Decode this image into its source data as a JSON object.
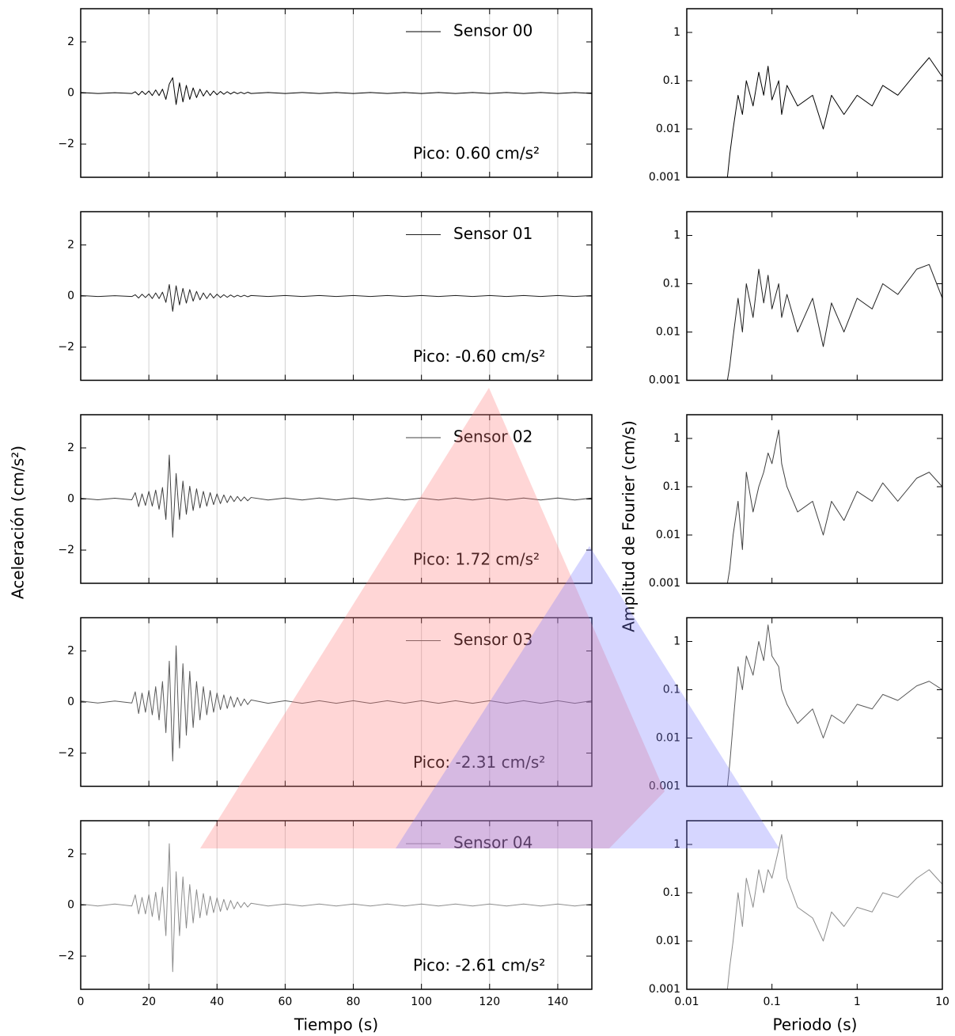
{
  "chart_data": [
    {
      "type": "line",
      "xlabel": "Tiempo (s)",
      "ylabel": "Aceleración (cm/s²)",
      "xlim": [
        0,
        150
      ],
      "xticks": [
        0,
        20,
        40,
        60,
        80,
        100,
        120,
        140
      ],
      "ylim": [
        -3.3,
        3.3
      ],
      "yticks": [
        {
          "value": -2,
          "label": "−2"
        },
        0,
        2
      ],
      "grid": true,
      "x": [
        0,
        5,
        10,
        15,
        16,
        17,
        18,
        19,
        20,
        21,
        22,
        23,
        24,
        25,
        26,
        27,
        28,
        29,
        30,
        31,
        32,
        33,
        34,
        35,
        36,
        37,
        38,
        39,
        40,
        41,
        42,
        43,
        44,
        45,
        46,
        47,
        48,
        49,
        50,
        55,
        60,
        65,
        70,
        75,
        80,
        85,
        90,
        95,
        100,
        105,
        110,
        115,
        120,
        125,
        130,
        135,
        140,
        145,
        150
      ],
      "series": [
        {
          "name": "Sensor 00",
          "color": "#000000",
          "annotation": "Pico: 0.60 cm/s²",
          "values": [
            0.02,
            -0.02,
            0.01,
            -0.02,
            0.05,
            -0.08,
            0.07,
            -0.06,
            0.08,
            -0.1,
            0.12,
            -0.1,
            0.15,
            -0.25,
            0.35,
            0.6,
            -0.45,
            0.4,
            -0.35,
            0.3,
            -0.25,
            0.2,
            -0.18,
            0.15,
            -0.12,
            0.1,
            -0.1,
            0.08,
            -0.07,
            0.06,
            -0.05,
            0.05,
            -0.04,
            0.04,
            -0.03,
            0.03,
            -0.03,
            0.03,
            -0.02,
            0.02,
            -0.02,
            0.02,
            -0.02,
            0.02,
            -0.02,
            0.02,
            -0.02,
            0.02,
            -0.02,
            0.02,
            -0.02,
            0.02,
            -0.02,
            0.02,
            -0.02,
            0.02,
            -0.02,
            0.02,
            -0.02
          ]
        },
        {
          "name": "Sensor 01",
          "color": "#202020",
          "annotation": "Pico: -0.60 cm/s²",
          "values": [
            0.02,
            -0.02,
            0.01,
            -0.02,
            0.05,
            -0.08,
            0.07,
            -0.06,
            0.08,
            -0.1,
            0.12,
            -0.1,
            0.15,
            -0.25,
            0.45,
            -0.6,
            0.4,
            -0.35,
            0.3,
            -0.28,
            0.25,
            -0.2,
            0.18,
            -0.15,
            0.12,
            -0.1,
            0.1,
            -0.08,
            0.07,
            -0.06,
            0.05,
            -0.05,
            0.04,
            -0.04,
            0.03,
            -0.03,
            0.03,
            -0.03,
            0.02,
            -0.02,
            0.02,
            -0.02,
            0.02,
            -0.02,
            0.02,
            -0.02,
            0.02,
            -0.02,
            0.02,
            -0.02,
            0.02,
            -0.02,
            0.02,
            -0.02,
            0.02,
            -0.02,
            0.02,
            -0.02,
            0.02
          ]
        },
        {
          "name": "Sensor 02",
          "color": "#404040",
          "annotation": "Pico: 1.72 cm/s²",
          "values": [
            0.03,
            -0.03,
            0.03,
            -0.03,
            0.25,
            -0.3,
            0.2,
            -0.25,
            0.3,
            -0.28,
            0.35,
            -0.4,
            0.45,
            -0.8,
            1.72,
            -1.5,
            1.0,
            -0.8,
            0.7,
            -0.6,
            0.5,
            -0.45,
            0.4,
            -0.35,
            0.3,
            -0.28,
            0.25,
            -0.22,
            0.2,
            -0.18,
            0.16,
            -0.14,
            0.12,
            -0.1,
            0.1,
            -0.08,
            0.08,
            -0.07,
            0.06,
            -0.04,
            0.04,
            -0.04,
            0.04,
            -0.04,
            0.04,
            -0.04,
            0.04,
            -0.04,
            0.04,
            -0.04,
            0.04,
            -0.04,
            0.04,
            -0.04,
            0.04,
            -0.04,
            0.04,
            -0.04,
            0.04
          ]
        },
        {
          "name": "Sensor 03",
          "color": "#5a5a5a",
          "annotation": "Pico: -2.31 cm/s²",
          "values": [
            0.04,
            -0.04,
            0.04,
            -0.04,
            0.4,
            -0.45,
            0.35,
            -0.4,
            0.45,
            -0.5,
            0.6,
            -0.7,
            0.8,
            -1.2,
            1.6,
            -2.31,
            2.2,
            -1.8,
            1.5,
            -1.3,
            1.2,
            -1.0,
            0.8,
            -0.7,
            0.6,
            -0.5,
            0.45,
            -0.4,
            0.35,
            -0.3,
            0.28,
            -0.25,
            0.22,
            -0.2,
            0.18,
            -0.15,
            0.12,
            -0.1,
            0.08,
            -0.05,
            0.05,
            -0.05,
            0.05,
            -0.05,
            0.05,
            -0.05,
            0.05,
            -0.05,
            0.05,
            -0.05,
            0.05,
            -0.05,
            0.05,
            -0.05,
            0.05,
            -0.05,
            0.05,
            -0.05,
            0.05
          ]
        },
        {
          "name": "Sensor 04",
          "color": "#8c8c8c",
          "annotation": "Pico: -2.61 cm/s²",
          "values": [
            0.04,
            -0.04,
            0.04,
            -0.04,
            0.4,
            -0.35,
            0.3,
            -0.35,
            0.4,
            -0.45,
            0.5,
            -0.6,
            0.7,
            -1.2,
            2.4,
            -2.61,
            1.3,
            -1.2,
            1.1,
            -0.9,
            0.8,
            -0.7,
            0.6,
            -0.5,
            0.45,
            -0.4,
            0.35,
            -0.3,
            0.28,
            -0.25,
            0.22,
            -0.2,
            0.18,
            -0.15,
            0.12,
            -0.1,
            0.1,
            -0.08,
            0.07,
            -0.04,
            0.04,
            -0.04,
            0.04,
            -0.04,
            0.04,
            -0.04,
            0.04,
            -0.04,
            0.04,
            -0.04,
            0.04,
            -0.04,
            0.04,
            -0.04,
            0.04,
            -0.04,
            0.04,
            -0.04,
            0.04
          ]
        }
      ]
    },
    {
      "type": "line",
      "xlabel": "Periodo (s)",
      "ylabel": "Amplitud de Fourier (cm/s)",
      "log_x": true,
      "log_y": true,
      "xlim": [
        0.01,
        10
      ],
      "xticks": [
        0.01,
        0.1,
        1,
        10
      ],
      "ylim": [
        0.001,
        3.1
      ],
      "yticks": [
        0.001,
        0.01,
        0.1,
        1
      ],
      "grid": false,
      "x": [
        0.03,
        0.032,
        0.035,
        0.04,
        0.045,
        0.05,
        0.06,
        0.07,
        0.08,
        0.09,
        0.1,
        0.12,
        0.13,
        0.15,
        0.2,
        0.3,
        0.4,
        0.5,
        0.7,
        1,
        1.5,
        2,
        3,
        5,
        7,
        10
      ],
      "series": [
        {
          "color": "#000000",
          "values": [
            0.001,
            0.003,
            0.01,
            0.05,
            0.02,
            0.1,
            0.03,
            0.15,
            0.05,
            0.2,
            0.04,
            0.1,
            0.02,
            0.08,
            0.03,
            0.05,
            0.01,
            0.05,
            0.02,
            0.05,
            0.03,
            0.08,
            0.05,
            0.15,
            0.3,
            0.12
          ]
        },
        {
          "color": "#202020",
          "values": [
            0.001,
            0.002,
            0.008,
            0.05,
            0.01,
            0.1,
            0.02,
            0.2,
            0.04,
            0.15,
            0.03,
            0.1,
            0.02,
            0.06,
            0.01,
            0.05,
            0.005,
            0.04,
            0.01,
            0.05,
            0.03,
            0.1,
            0.06,
            0.2,
            0.25,
            0.05
          ]
        },
        {
          "color": "#404040",
          "values": [
            0.001,
            0.002,
            0.01,
            0.05,
            0.005,
            0.2,
            0.03,
            0.1,
            0.2,
            0.5,
            0.3,
            1.5,
            0.3,
            0.1,
            0.03,
            0.05,
            0.01,
            0.05,
            0.02,
            0.08,
            0.05,
            0.12,
            0.05,
            0.15,
            0.2,
            0.1
          ]
        },
        {
          "color": "#5a5a5a",
          "values": [
            0.001,
            0.003,
            0.02,
            0.3,
            0.1,
            0.5,
            0.2,
            1,
            0.4,
            2.2,
            0.5,
            0.3,
            0.1,
            0.05,
            0.02,
            0.04,
            0.01,
            0.03,
            0.02,
            0.05,
            0.04,
            0.08,
            0.06,
            0.12,
            0.15,
            0.1
          ]
        },
        {
          "color": "#8c8c8c",
          "values": [
            0.001,
            0.003,
            0.01,
            0.1,
            0.02,
            0.2,
            0.05,
            0.3,
            0.1,
            0.3,
            0.2,
            0.8,
            1.6,
            0.2,
            0.05,
            0.03,
            0.01,
            0.04,
            0.02,
            0.05,
            0.04,
            0.1,
            0.08,
            0.2,
            0.3,
            0.15
          ]
        }
      ]
    }
  ]
}
